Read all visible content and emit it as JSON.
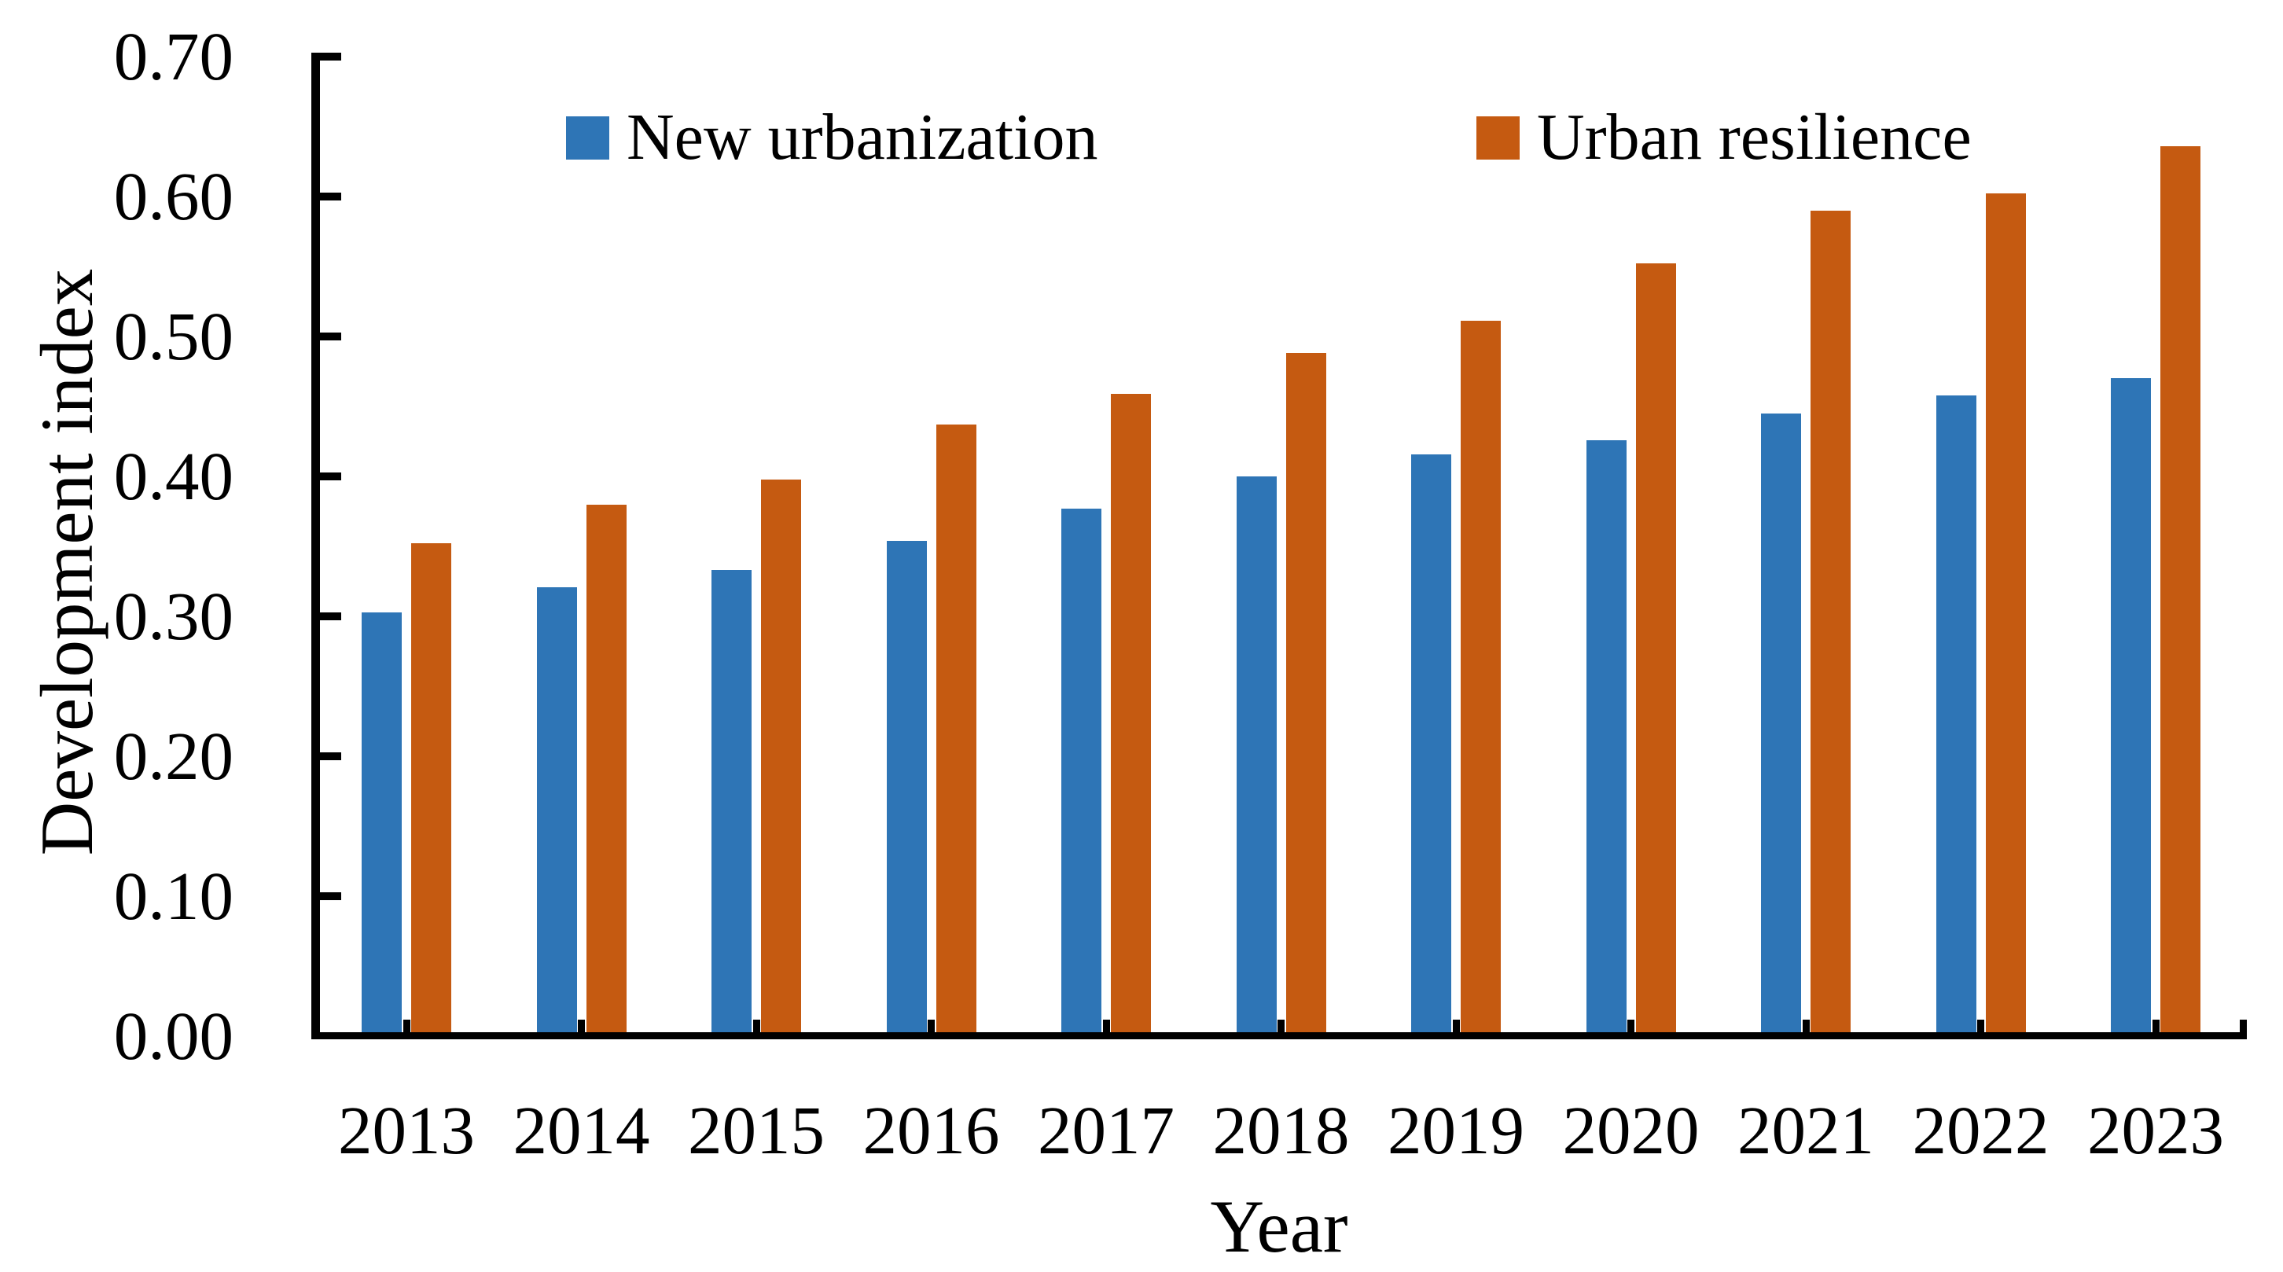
{
  "chart_data": {
    "type": "bar",
    "title": "",
    "xlabel": "Year",
    "ylabel": "Development index",
    "categories": [
      "2013",
      "2014",
      "2015",
      "2016",
      "2017",
      "2018",
      "2019",
      "2020",
      "2021",
      "2022",
      "2023"
    ],
    "series": [
      {
        "name": "New urbanization",
        "color": "#2E75B6",
        "values": [
          0.303,
          0.321,
          0.333,
          0.354,
          0.377,
          0.4,
          0.416,
          0.426,
          0.445,
          0.458,
          0.47
        ]
      },
      {
        "name": "Urban resilience",
        "color": "#C55A11",
        "values": [
          0.352,
          0.38,
          0.398,
          0.437,
          0.459,
          0.488,
          0.511,
          0.552,
          0.59,
          0.602,
          0.636
        ]
      }
    ],
    "ylim": [
      0.0,
      0.7
    ],
    "y_tick_step": 0.1,
    "y_tick_labels": [
      "0.00",
      "0.10",
      "0.20",
      "0.30",
      "0.40",
      "0.50",
      "0.60",
      "0.70"
    ],
    "grid": "off",
    "legend_position": "top",
    "axis_color": "#000000",
    "text_color": "#000000",
    "background": "#FFFFFF"
  }
}
